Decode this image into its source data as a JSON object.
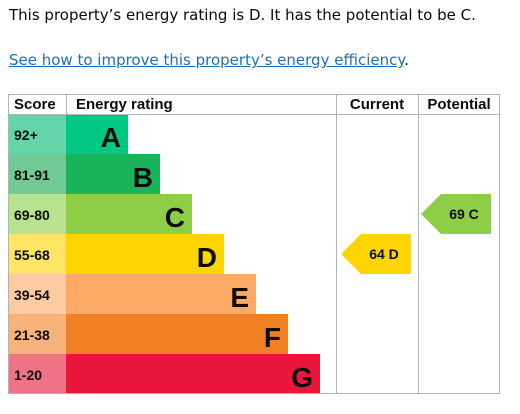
{
  "summary": "This property’s energy rating is D. It has the potential to be C.",
  "link": {
    "text": "See how to improve this property’s energy efficiency",
    "suffix": "."
  },
  "chart_data": {
    "type": "bar",
    "headers": {
      "score": "Score",
      "rating": "Energy rating",
      "current": "Current",
      "potential": "Potential"
    },
    "bands": [
      {
        "letter": "A",
        "range": "92+",
        "min": 92,
        "max": 100,
        "color": "#00c781",
        "score_bg": "#64d5a9"
      },
      {
        "letter": "B",
        "range": "81-91",
        "min": 81,
        "max": 91,
        "color": "#19b459",
        "score_bg": "#72cb96"
      },
      {
        "letter": "C",
        "range": "69-80",
        "min": 69,
        "max": 80,
        "color": "#8dce46",
        "score_bg": "#b9e28e"
      },
      {
        "letter": "D",
        "range": "55-68",
        "min": 55,
        "max": 68,
        "color": "#ffd500",
        "score_bg": "#ffe566"
      },
      {
        "letter": "E",
        "range": "39-54",
        "min": 39,
        "max": 54,
        "color": "#fcaa65",
        "score_bg": "#fdcba1"
      },
      {
        "letter": "F",
        "range": "21-38",
        "min": 21,
        "max": 38,
        "color": "#ef8023",
        "score_bg": "#f5b27a"
      },
      {
        "letter": "G",
        "range": "1-20",
        "min": 1,
        "max": 20,
        "color": "#e9153b",
        "score_bg": "#f07287"
      }
    ],
    "current": {
      "value": 64,
      "letter": "D",
      "label": "64  D",
      "color": "#ffd500"
    },
    "potential": {
      "value": 69,
      "letter": "C",
      "label": "69  C",
      "color": "#8dce46"
    }
  }
}
